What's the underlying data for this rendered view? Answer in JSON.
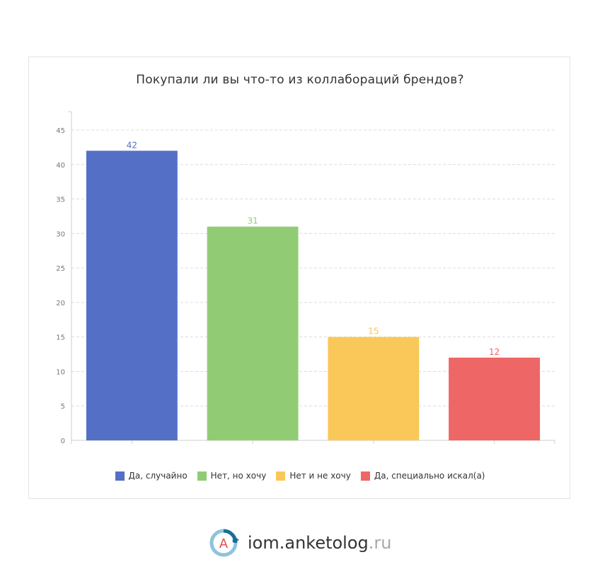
{
  "chart_data": {
    "type": "bar",
    "title": "Покупали ли вы что-то из коллабораций брендов?",
    "categories": [
      "Да, случайно",
      "Нет, но хочу",
      "Нет и не хочу",
      "Да, специально искал(а)"
    ],
    "values": [
      42,
      31,
      15,
      12
    ],
    "colors": [
      "#5470c6",
      "#91cc75",
      "#fac858",
      "#ee6666"
    ],
    "ylim": [
      0,
      45
    ],
    "yticks": [
      0,
      5,
      10,
      15,
      20,
      25,
      30,
      35,
      40,
      45
    ],
    "grid": true,
    "legend_position": "bottom"
  },
  "logo": {
    "icon_letter": "A",
    "name": "iom.anketolog",
    "tld": ".ru"
  }
}
